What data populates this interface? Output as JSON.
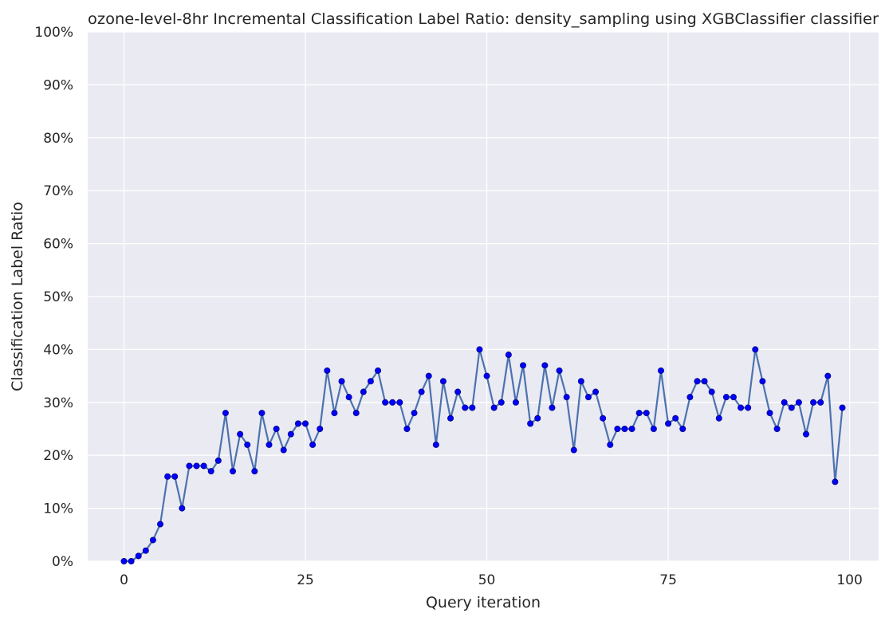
{
  "chart_data": {
    "type": "line",
    "title": "ozone-level-8hr Incremental Classification Label Ratio: density_sampling using XGBClassifier classifier",
    "xlabel": "Query iteration",
    "ylabel": "Classification Label Ratio",
    "xlim": [
      -5,
      104
    ],
    "ylim": [
      0,
      100
    ],
    "xticks": [
      0,
      25,
      50,
      75,
      100
    ],
    "yticks": [
      0,
      10,
      20,
      30,
      40,
      50,
      60,
      70,
      80,
      90,
      100
    ],
    "ytick_labels": [
      "0%",
      "10%",
      "20%",
      "30%",
      "40%",
      "50%",
      "60%",
      "70%",
      "80%",
      "90%",
      "100%"
    ],
    "grid": true,
    "legend": "none",
    "colors": {
      "background": "#eaeaf2",
      "grid": "#ffffff",
      "line": "#4c72b0",
      "marker": "#0000ff",
      "marker_edge": "#000080"
    },
    "series": [
      {
        "x": [
          0,
          1,
          2,
          3,
          4,
          5,
          6,
          7,
          8,
          9,
          10,
          11,
          12,
          13,
          14,
          15,
          16,
          17,
          18,
          19,
          20,
          21,
          22,
          23,
          24,
          25,
          26,
          27,
          28,
          29,
          30,
          31,
          32,
          33,
          34,
          35,
          36,
          37,
          38,
          39,
          40,
          41,
          42,
          43,
          44,
          45,
          46,
          47,
          48,
          49,
          50,
          51,
          52,
          53,
          54,
          55,
          56,
          57,
          58,
          59,
          60,
          61,
          62,
          63,
          64,
          65,
          66,
          67,
          68,
          69,
          70,
          71,
          72,
          73,
          74,
          75,
          76,
          77,
          78,
          79,
          80,
          81,
          82,
          83,
          84,
          85,
          86,
          87,
          88,
          89,
          90,
          91,
          92,
          93,
          94,
          95,
          96,
          97,
          98,
          99
        ],
        "values": [
          0,
          0,
          1,
          2,
          4,
          7,
          16,
          16,
          10,
          18,
          18,
          18,
          17,
          19,
          28,
          17,
          24,
          22,
          17,
          28,
          22,
          25,
          21,
          24,
          26,
          26,
          22,
          25,
          36,
          28,
          34,
          31,
          28,
          32,
          34,
          36,
          30,
          30,
          30,
          25,
          28,
          32,
          35,
          22,
          34,
          27,
          32,
          29,
          29,
          40,
          35,
          29,
          30,
          39,
          30,
          37,
          26,
          27,
          37,
          29,
          36,
          31,
          21,
          34,
          31,
          32,
          27,
          22,
          25,
          25,
          25,
          28,
          28,
          25,
          36,
          26,
          27,
          25,
          31,
          34,
          34,
          32,
          27,
          31,
          31,
          29,
          29,
          40,
          34,
          28,
          25,
          30,
          29,
          30,
          24,
          30,
          30,
          35,
          15,
          29
        ]
      }
    ]
  }
}
